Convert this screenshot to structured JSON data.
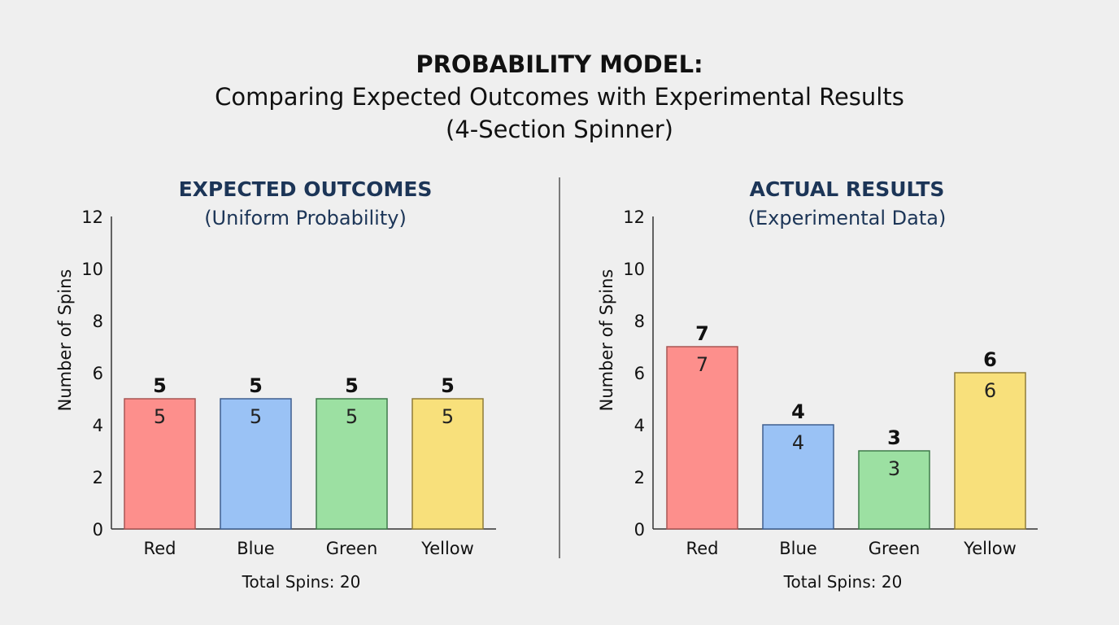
{
  "title": {
    "line1": "PROBABILITY MODEL:",
    "line2": "Comparing Expected Outcomes with Experimental Results",
    "line3": "(4-Section Spinner)"
  },
  "chart_data": [
    {
      "type": "bar",
      "title": "EXPECTED OUTCOMES",
      "subtitle": "(Uniform Probability)",
      "ylabel": "Number of Spins",
      "xlabel": "Total Spins: 20",
      "ylim": [
        0,
        12
      ],
      "yticks": [
        0,
        2,
        4,
        6,
        8,
        10,
        12
      ],
      "categories": [
        "Red",
        "Blue",
        "Green",
        "Yellow"
      ],
      "values": [
        5,
        5,
        5,
        5
      ],
      "colors": [
        "#fd8f8c",
        "#9ac2f5",
        "#9ce0a2",
        "#f8e07b"
      ],
      "grid": false
    },
    {
      "type": "bar",
      "title": "ACTUAL RESULTS",
      "subtitle": "(Experimental Data)",
      "ylabel": "Number of Spins",
      "xlabel": "Total Spins: 20",
      "ylim": [
        0,
        12
      ],
      "yticks": [
        0,
        2,
        4,
        6,
        8,
        10,
        12
      ],
      "categories": [
        "Red",
        "Blue",
        "Green",
        "Yellow"
      ],
      "values": [
        7,
        4,
        3,
        6
      ],
      "colors": [
        "#fd8f8c",
        "#9ac2f5",
        "#9ce0a2",
        "#f8e07b"
      ],
      "grid": false
    }
  ],
  "colors": {
    "heading": "#1c3557",
    "border": [
      "#a85654",
      "#3f5f8f",
      "#3f7a4a",
      "#8f7c38"
    ]
  }
}
